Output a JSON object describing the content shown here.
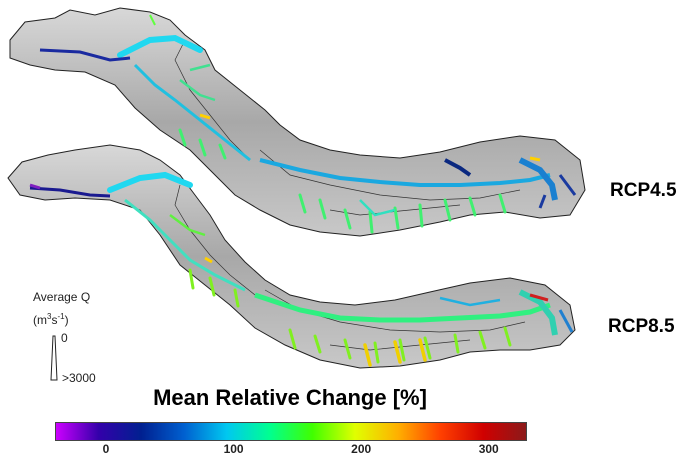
{
  "scenarios": [
    {
      "label": "RCP4.5"
    },
    {
      "label": "RCP8.5"
    }
  ],
  "legend": {
    "title": "Average Q",
    "unit_main": "(m",
    "unit_sup1": "3",
    "unit_mid": "s",
    "unit_sup2": "-1",
    "unit_end": ")",
    "min_label": "0",
    "max_label": ">3000"
  },
  "colorbar": {
    "title": "Mean Relative Change [%]",
    "ticks": [
      "0",
      "100",
      "200",
      "300"
    ],
    "tick_values": [
      0,
      100,
      200,
      300
    ],
    "range": [
      -40,
      330
    ],
    "colors": [
      "#cc00ff",
      "#3300aa",
      "#002090",
      "#0060d0",
      "#00c8f0",
      "#00ff90",
      "#40ff00",
      "#e0ff00",
      "#ffb000",
      "#ff4000",
      "#d00000",
      "#8b1a1a"
    ]
  }
}
